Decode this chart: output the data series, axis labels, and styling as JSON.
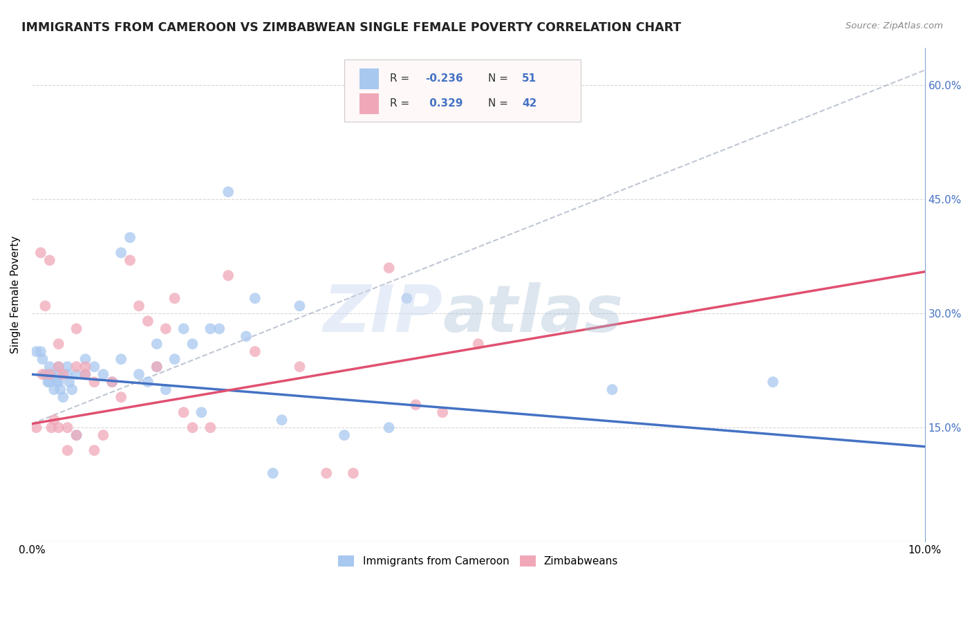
{
  "title": "IMMIGRANTS FROM CAMEROON VS ZIMBABWEAN SINGLE FEMALE POVERTY CORRELATION CHART",
  "source": "Source: ZipAtlas.com",
  "ylabel": "Single Female Poverty",
  "xlim": [
    0.0,
    0.1
  ],
  "ylim": [
    0.0,
    0.65
  ],
  "cameroon_color": "#a8c8f0",
  "zimbabwe_color": "#f0a8b8",
  "cameroon_line_color": "#4472c4",
  "zimbabwe_line_color": "#e05070",
  "cameroon_R": "-0.236",
  "cameroon_N": "51",
  "zimbabwe_R": "0.329",
  "zimbabwe_N": "42",
  "legend_label_cameroon": "Immigrants from Cameroon",
  "legend_label_zimbabwe": "Zimbabweans",
  "bg_color": "#ffffff",
  "grid_color": "#d8d8d8",
  "tick_fontsize": 11,
  "axis_label_fontsize": 11,
  "cameroon_scatter_x": [
    0.0005,
    0.001,
    0.0012,
    0.0015,
    0.0018,
    0.002,
    0.002,
    0.0022,
    0.0025,
    0.0028,
    0.003,
    0.003,
    0.003,
    0.0032,
    0.0035,
    0.004,
    0.004,
    0.0042,
    0.0045,
    0.005,
    0.005,
    0.006,
    0.006,
    0.007,
    0.008,
    0.009,
    0.01,
    0.01,
    0.011,
    0.012,
    0.013,
    0.014,
    0.014,
    0.015,
    0.016,
    0.017,
    0.018,
    0.019,
    0.02,
    0.021,
    0.022,
    0.024,
    0.025,
    0.027,
    0.028,
    0.03,
    0.035,
    0.04,
    0.042,
    0.065,
    0.083
  ],
  "cameroon_scatter_y": [
    0.25,
    0.25,
    0.24,
    0.22,
    0.21,
    0.23,
    0.21,
    0.22,
    0.2,
    0.21,
    0.23,
    0.22,
    0.21,
    0.2,
    0.19,
    0.23,
    0.22,
    0.21,
    0.2,
    0.22,
    0.14,
    0.24,
    0.22,
    0.23,
    0.22,
    0.21,
    0.38,
    0.24,
    0.4,
    0.22,
    0.21,
    0.26,
    0.23,
    0.2,
    0.24,
    0.28,
    0.26,
    0.17,
    0.28,
    0.28,
    0.46,
    0.27,
    0.32,
    0.09,
    0.16,
    0.31,
    0.14,
    0.15,
    0.32,
    0.2,
    0.21
  ],
  "zimbabwe_scatter_x": [
    0.0005,
    0.001,
    0.0012,
    0.0015,
    0.002,
    0.002,
    0.0022,
    0.0025,
    0.003,
    0.003,
    0.003,
    0.0035,
    0.004,
    0.004,
    0.005,
    0.005,
    0.005,
    0.006,
    0.006,
    0.007,
    0.007,
    0.008,
    0.009,
    0.01,
    0.011,
    0.012,
    0.013,
    0.014,
    0.015,
    0.016,
    0.017,
    0.018,
    0.02,
    0.022,
    0.025,
    0.03,
    0.033,
    0.036,
    0.04,
    0.043,
    0.046,
    0.05
  ],
  "zimbabwe_scatter_y": [
    0.15,
    0.38,
    0.22,
    0.31,
    0.37,
    0.22,
    0.15,
    0.16,
    0.26,
    0.23,
    0.15,
    0.22,
    0.15,
    0.12,
    0.28,
    0.23,
    0.14,
    0.23,
    0.22,
    0.21,
    0.12,
    0.14,
    0.21,
    0.19,
    0.37,
    0.31,
    0.29,
    0.23,
    0.28,
    0.32,
    0.17,
    0.15,
    0.15,
    0.35,
    0.25,
    0.23,
    0.09,
    0.09,
    0.36,
    0.18,
    0.17,
    0.26
  ],
  "cam_line_x0": 0.0,
  "cam_line_y0": 0.22,
  "cam_line_x1": 0.1,
  "cam_line_y1": 0.125,
  "zim_line_x0": 0.0,
  "zim_line_y0": 0.155,
  "zim_line_x1": 0.1,
  "zim_line_y1": 0.355,
  "dash_line_x0": 0.0,
  "dash_line_y0": 0.155,
  "dash_line_x1": 0.1,
  "dash_line_y1": 0.62
}
